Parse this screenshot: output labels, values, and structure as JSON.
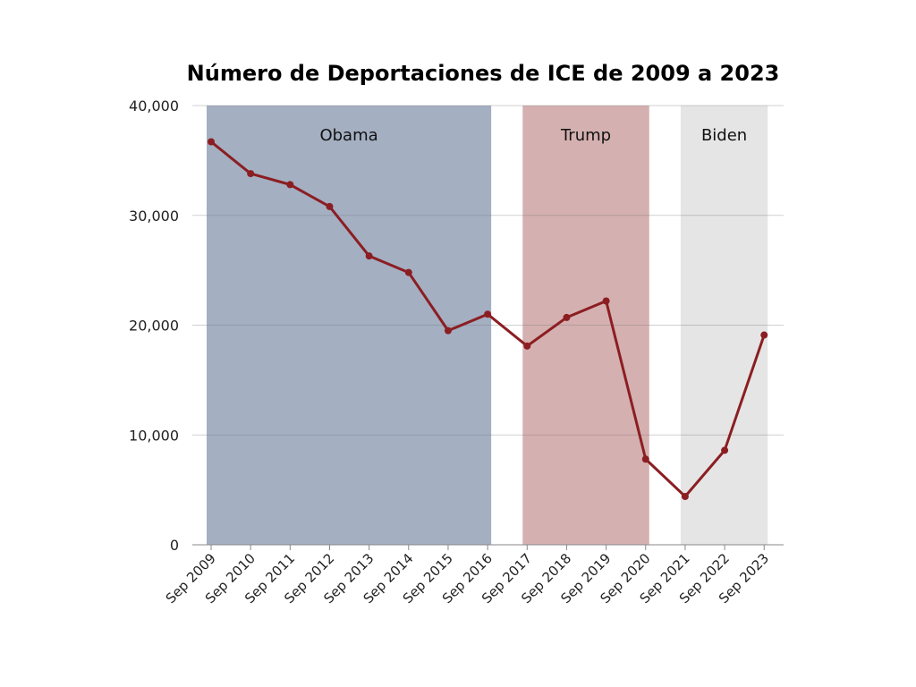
{
  "chart_data": {
    "type": "line",
    "title": "Número de Deportaciones de ICE de 2009 a 2023",
    "xlabel": "",
    "ylabel": "",
    "categories": [
      "Sep 2009",
      "Sep 2010",
      "Sep 2011",
      "Sep 2012",
      "Sep 2013",
      "Sep 2014",
      "Sep 2015",
      "Sep 2016",
      "Sep 2017",
      "Sep 2018",
      "Sep 2019",
      "Sep 2020",
      "Sep 2021",
      "Sep 2022",
      "Sep 2023"
    ],
    "values": [
      36700,
      33800,
      32800,
      30800,
      26300,
      24800,
      19500,
      21000,
      18100,
      20700,
      22200,
      7800,
      4400,
      8600,
      19100
    ],
    "ylim": [
      0,
      40000
    ],
    "yticks": [
      0,
      10000,
      20000,
      30000,
      40000
    ],
    "ytick_labels": [
      "0",
      "10,000",
      "20,000",
      "30,000",
      "40,000"
    ],
    "grid": "horizontal",
    "line_color": "#8b1e22",
    "regions": [
      {
        "label": "Obama",
        "start": "Sep 2009",
        "end": "Sep 2016",
        "color": "#a4afc2"
      },
      {
        "label": "Trump",
        "start": "Sep 2017",
        "end": "Sep 2020",
        "color": "#d5b0b0"
      },
      {
        "label": "Biden",
        "start": "Sep 2021",
        "end": "Sep 2023",
        "color": "#e5e5e5"
      }
    ]
  }
}
